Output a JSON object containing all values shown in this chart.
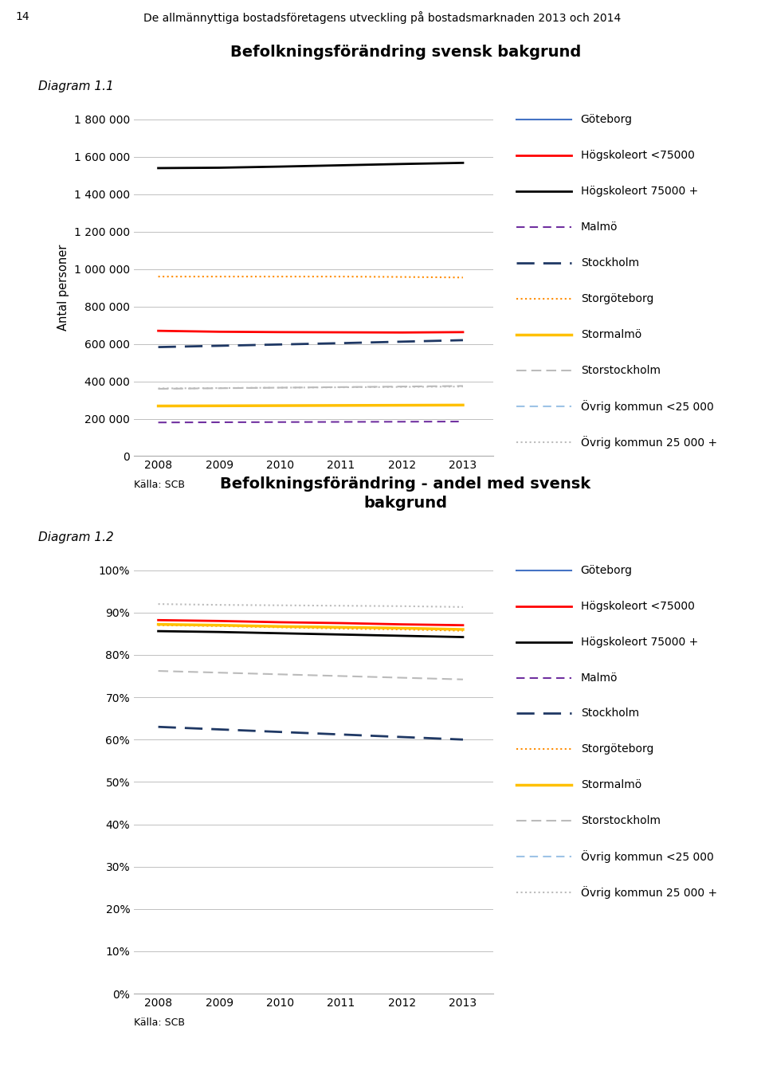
{
  "page_header": "De allmännyttiga bostadsföretagens utveckling på bostadsmarknaden 2013 och 2014",
  "page_number": "14",
  "diagram1_label": "Diagram 1.1",
  "diagram2_label": "Diagram 1.2",
  "title1": "Befolkningsförändring svensk bakgrund",
  "title2": "Befolkningsförändring - andel med svensk\nbakgrund",
  "ylabel1": "Antal personer",
  "xlabel_source": "Källa: SCB",
  "years": [
    2008,
    2009,
    2010,
    2011,
    2012,
    2013
  ],
  "series1": {
    "Göteborg": [
      null,
      null,
      null,
      null,
      null,
      null
    ],
    "Högskoleort <75000": [
      670000,
      665000,
      663000,
      662000,
      661000,
      663000
    ],
    "Högskoleort 75000 +": [
      1540000,
      1542000,
      1548000,
      1555000,
      1562000,
      1568000
    ],
    "Malmö": [
      180000,
      181000,
      182000,
      183000,
      184000,
      185000
    ],
    "Stockholm": [
      583000,
      590000,
      597000,
      604000,
      612000,
      620000
    ],
    "Storgöteborg": [
      960000,
      960000,
      960000,
      960000,
      958000,
      955000
    ],
    "Stormalmö": [
      268000,
      269000,
      270000,
      271000,
      272000,
      273000
    ],
    "Storstockholm": [
      360000,
      363000,
      366000,
      369000,
      372000,
      375000
    ],
    "Övrig kommun <25 000": [
      null,
      null,
      null,
      null,
      null,
      null
    ],
    "Övrig kommun 25 000 +": [
      362000,
      364000,
      366000,
      368000,
      370000,
      372000
    ]
  },
  "series2": {
    "Göteborg": [
      null,
      null,
      null,
      null,
      null,
      null
    ],
    "Högskoleort <75000": [
      0.882,
      0.88,
      0.877,
      0.875,
      0.872,
      0.87
    ],
    "Högskoleort 75000 +": [
      0.856,
      0.854,
      0.851,
      0.848,
      0.845,
      0.842
    ],
    "Malmö": [
      null,
      null,
      null,
      null,
      null,
      null
    ],
    "Stockholm": [
      0.63,
      0.624,
      0.618,
      0.612,
      0.606,
      0.6
    ],
    "Storgöteborg": [
      0.87,
      0.868,
      0.865,
      0.862,
      0.86,
      0.857
    ],
    "Stormalmö": [
      0.872,
      0.87,
      0.867,
      0.865,
      0.863,
      0.86
    ],
    "Storstockholm": [
      0.762,
      0.758,
      0.754,
      0.75,
      0.746,
      0.742
    ],
    "Övrig kommun <25 000": [
      null,
      null,
      null,
      null,
      null,
      null
    ],
    "Övrig kommun 25 000 +": [
      0.92,
      0.918,
      0.917,
      0.916,
      0.915,
      0.913
    ]
  },
  "series_styles": {
    "Göteborg": {
      "color": "#4472C4",
      "linestyle": "-",
      "linewidth": 1.5
    },
    "Högskoleort <75000": {
      "color": "#FF0000",
      "linestyle": "-",
      "linewidth": 2.0
    },
    "Högskoleort 75000 +": {
      "color": "#000000",
      "linestyle": "-",
      "linewidth": 2.0
    },
    "Malmö": {
      "color": "#7030A0",
      "linestyle": "--",
      "linewidth": 1.5,
      "dashes": [
        5,
        3
      ]
    },
    "Stockholm": {
      "color": "#1F3864",
      "linestyle": "--",
      "linewidth": 2.0,
      "dashes": [
        8,
        4
      ]
    },
    "Storgöteborg": {
      "color": "#FF8C00",
      "linestyle": ":",
      "linewidth": 1.5
    },
    "Stormalmö": {
      "color": "#FFC000",
      "linestyle": "-",
      "linewidth": 2.5
    },
    "Storstockholm": {
      "color": "#BBBBBB",
      "linestyle": "--",
      "linewidth": 1.5,
      "dashes": [
        6,
        3
      ]
    },
    "Övrig kommun <25 000": {
      "color": "#9DC3E6",
      "linestyle": "--",
      "linewidth": 1.5,
      "dashes": [
        5,
        3
      ]
    },
    "Övrig kommun 25 000 +": {
      "color": "#BBBBBB",
      "linestyle": ":",
      "linewidth": 1.5
    }
  },
  "ylim1": [
    0,
    1800000
  ],
  "yticks1": [
    0,
    200000,
    400000,
    600000,
    800000,
    1000000,
    1200000,
    1400000,
    1600000,
    1800000
  ],
  "ylim2": [
    0,
    1.0
  ],
  "yticks2": [
    0.0,
    0.1,
    0.2,
    0.3,
    0.4,
    0.5,
    0.6,
    0.7,
    0.8,
    0.9,
    1.0
  ],
  "legend_order": [
    "Göteborg",
    "Högskoleort <75000",
    "Högskoleort 75000 +",
    "Malmö",
    "Stockholm",
    "Storgöteborg",
    "Stormalmö",
    "Storstockholm",
    "Övrig kommun <25 000",
    "Övrig kommun 25 000 +"
  ],
  "bg_color": "#FFFFFF",
  "grid_color": "#C0C0C0"
}
